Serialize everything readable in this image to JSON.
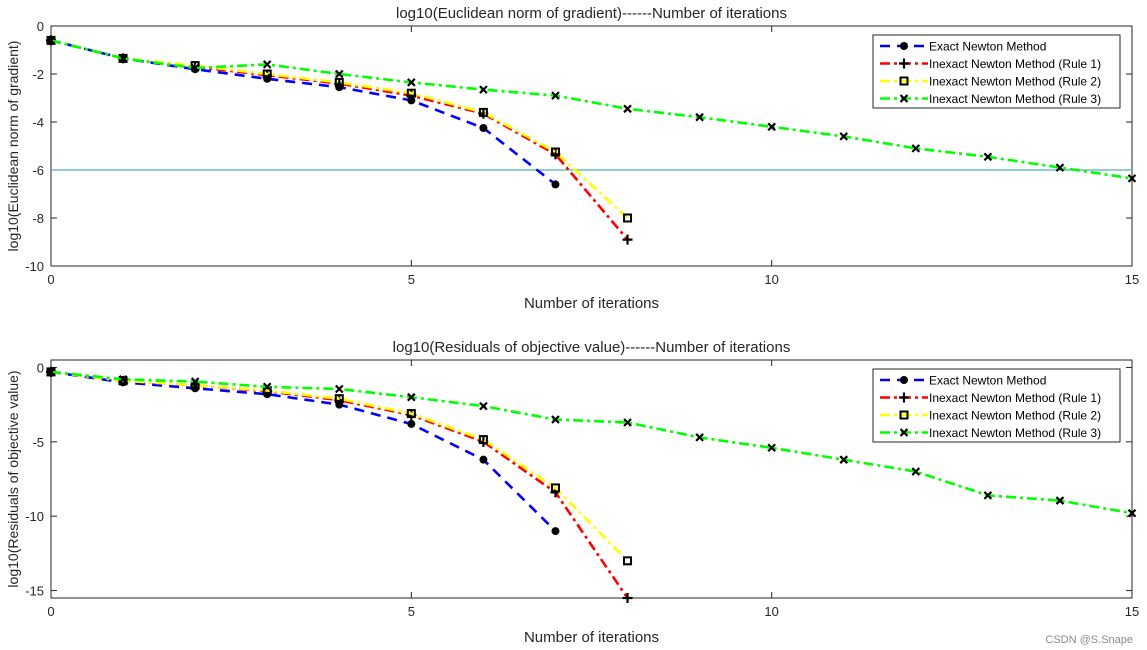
{
  "colors": {
    "exact": "#0000ff",
    "rule1": "#ff0000",
    "rule2": "#ffff00",
    "rule3": "#00ff00",
    "threshold": "#4fb3b3",
    "axis": "#262626",
    "marker": "#000000"
  },
  "watermark": "CSDN @S.Snape",
  "chart_data": [
    {
      "type": "line",
      "title": "log10(Euclidean norm of gradient)------Number of iterations",
      "xlabel": "Number of iterations",
      "ylabel": "log10(Euclidean norm of gradient)",
      "xlim": [
        0,
        15
      ],
      "ylim": [
        -10,
        0
      ],
      "xticks": [
        0,
        5,
        10,
        15
      ],
      "yticks": [
        0,
        -2,
        -4,
        -6,
        -8,
        -10
      ],
      "legend_position": "top-right",
      "threshold": -6,
      "series": [
        {
          "name": "Exact Newton Method",
          "key": "exact",
          "style": "dashed",
          "marker": "dot",
          "x": [
            0,
            1,
            2,
            3,
            4,
            5,
            6,
            7
          ],
          "y": [
            -0.6,
            -1.35,
            -1.8,
            -2.2,
            -2.55,
            -3.1,
            -4.25,
            -6.6
          ]
        },
        {
          "name": "Inexact Newton Method (Rule 1)",
          "key": "rule1",
          "style": "dashdot",
          "marker": "plus",
          "x": [
            0,
            1,
            2,
            3,
            4,
            5,
            6,
            7,
            8
          ],
          "y": [
            -0.6,
            -1.35,
            -1.7,
            -2.05,
            -2.4,
            -2.9,
            -3.65,
            -5.35,
            -8.9
          ]
        },
        {
          "name": "Inexact Newton Method (Rule 2)",
          "key": "rule2",
          "style": "dashdot",
          "marker": "square",
          "x": [
            0,
            1,
            2,
            3,
            4,
            5,
            6,
            7,
            8
          ],
          "y": [
            -0.6,
            -1.35,
            -1.65,
            -2.0,
            -2.35,
            -2.8,
            -3.6,
            -5.25,
            -8.0
          ]
        },
        {
          "name": "Inexact Newton Method (Rule 3)",
          "key": "rule3",
          "style": "dashdot",
          "marker": "x",
          "x": [
            0,
            1,
            2,
            3,
            4,
            5,
            6,
            7,
            8,
            9,
            10,
            11,
            12,
            13,
            14,
            15
          ],
          "y": [
            -0.6,
            -1.35,
            -1.75,
            -1.6,
            -2.0,
            -2.35,
            -2.65,
            -2.9,
            -3.45,
            -3.8,
            -4.2,
            -4.6,
            -5.1,
            -5.45,
            -5.9,
            -6.35
          ]
        }
      ]
    },
    {
      "type": "line",
      "title": "log10(Residuals of objective value)------Number of iterations",
      "xlabel": "Number of iterations",
      "ylabel": "log10(Residuals of objective value)",
      "xlim": [
        0,
        15
      ],
      "ylim": [
        -15.5,
        0.5
      ],
      "xticks": [
        0,
        5,
        10,
        15
      ],
      "yticks": [
        0,
        -5,
        -10,
        -15
      ],
      "legend_position": "top-right",
      "series": [
        {
          "name": "Exact Newton Method",
          "key": "exact",
          "style": "dashed",
          "marker": "dot",
          "x": [
            0,
            1,
            2,
            3,
            4,
            5,
            6,
            7
          ],
          "y": [
            -0.3,
            -1.0,
            -1.4,
            -1.8,
            -2.5,
            -3.8,
            -6.2,
            -11.0
          ]
        },
        {
          "name": "Inexact Newton Method (Rule 1)",
          "key": "rule1",
          "style": "dashdot",
          "marker": "plus",
          "x": [
            0,
            1,
            2,
            3,
            4,
            5,
            6,
            7,
            8
          ],
          "y": [
            -0.3,
            -0.9,
            -1.2,
            -1.6,
            -2.2,
            -3.2,
            -5.0,
            -8.4,
            -15.5
          ]
        },
        {
          "name": "Inexact Newton Method (Rule 2)",
          "key": "rule2",
          "style": "dashdot",
          "marker": "square",
          "x": [
            0,
            1,
            2,
            3,
            4,
            5,
            6,
            7,
            8
          ],
          "y": [
            -0.3,
            -0.9,
            -1.2,
            -1.55,
            -2.1,
            -3.1,
            -4.85,
            -8.1,
            -13.0
          ]
        },
        {
          "name": "Inexact Newton Method (Rule 3)",
          "key": "rule3",
          "style": "dashdot",
          "marker": "x",
          "x": [
            0,
            1,
            2,
            3,
            4,
            5,
            6,
            7,
            8,
            9,
            10,
            11,
            12,
            13,
            14,
            15
          ],
          "y": [
            -0.3,
            -0.8,
            -0.95,
            -1.3,
            -1.45,
            -2.0,
            -2.6,
            -3.5,
            -3.7,
            -4.7,
            -5.4,
            -6.2,
            -7.0,
            -8.6,
            -8.95,
            -9.8
          ]
        }
      ]
    }
  ]
}
